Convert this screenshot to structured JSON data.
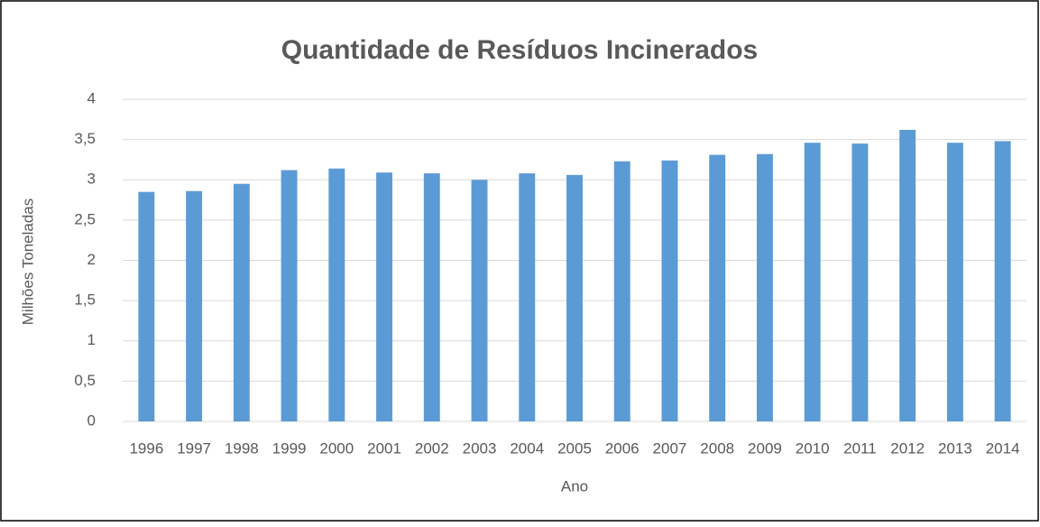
{
  "chart_data": {
    "type": "bar",
    "title": "Quantidade de Resíduos Incinerados",
    "x_label": "Ano",
    "y_label": "Milhões Toneladas",
    "categories": [
      "1996",
      "1997",
      "1998",
      "1999",
      "2000",
      "2001",
      "2002",
      "2003",
      "2004",
      "2005",
      "2006",
      "2007",
      "2008",
      "2009",
      "2010",
      "2011",
      "2012",
      "2013",
      "2014"
    ],
    "values": [
      2.85,
      2.86,
      2.95,
      3.12,
      3.14,
      3.09,
      3.08,
      3.0,
      3.08,
      3.06,
      3.23,
      3.24,
      3.31,
      3.32,
      3.46,
      3.45,
      3.62,
      3.46,
      3.48
    ],
    "color": "#5b9bd5",
    "ylim": [
      0,
      4
    ],
    "yticks": [
      0,
      {
        "value": 0.5,
        "label": "0,5"
      },
      1,
      {
        "value": 1.5,
        "label": "1,5"
      },
      2,
      {
        "value": 2.5,
        "label": "2,5"
      },
      3,
      {
        "value": 3.5,
        "label": "3,5"
      },
      4
    ],
    "grid": true
  }
}
